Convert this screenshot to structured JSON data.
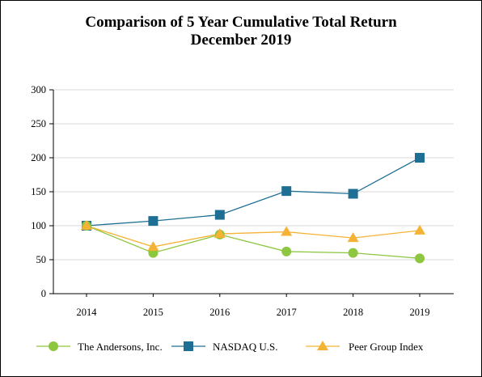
{
  "chart_data": {
    "type": "line",
    "title": "Comparison of 5 Year Cumulative Total Return",
    "subtitle": "December 2019",
    "xlabel": "",
    "ylabel": "",
    "categories": [
      "2014",
      "2015",
      "2016",
      "2017",
      "2018",
      "2019"
    ],
    "ylim": [
      0,
      300
    ],
    "yticks": [
      "0",
      "50",
      "100",
      "150",
      "200",
      "250",
      "300"
    ],
    "grid": true,
    "legend_position": "bottom",
    "series": [
      {
        "name": "The Andersons, Inc.",
        "color": "#8dc63f",
        "marker": "circle",
        "values": [
          100,
          60,
          87,
          62,
          60,
          52
        ]
      },
      {
        "name": "NASDAQ U.S.",
        "color": "#1f6e94",
        "marker": "square",
        "values": [
          100,
          107,
          116,
          151,
          147,
          200
        ]
      },
      {
        "name": "Peer Group Index",
        "color": "#f5b335",
        "marker": "triangle",
        "values": [
          100,
          69,
          88,
          91,
          82,
          93
        ]
      }
    ]
  }
}
